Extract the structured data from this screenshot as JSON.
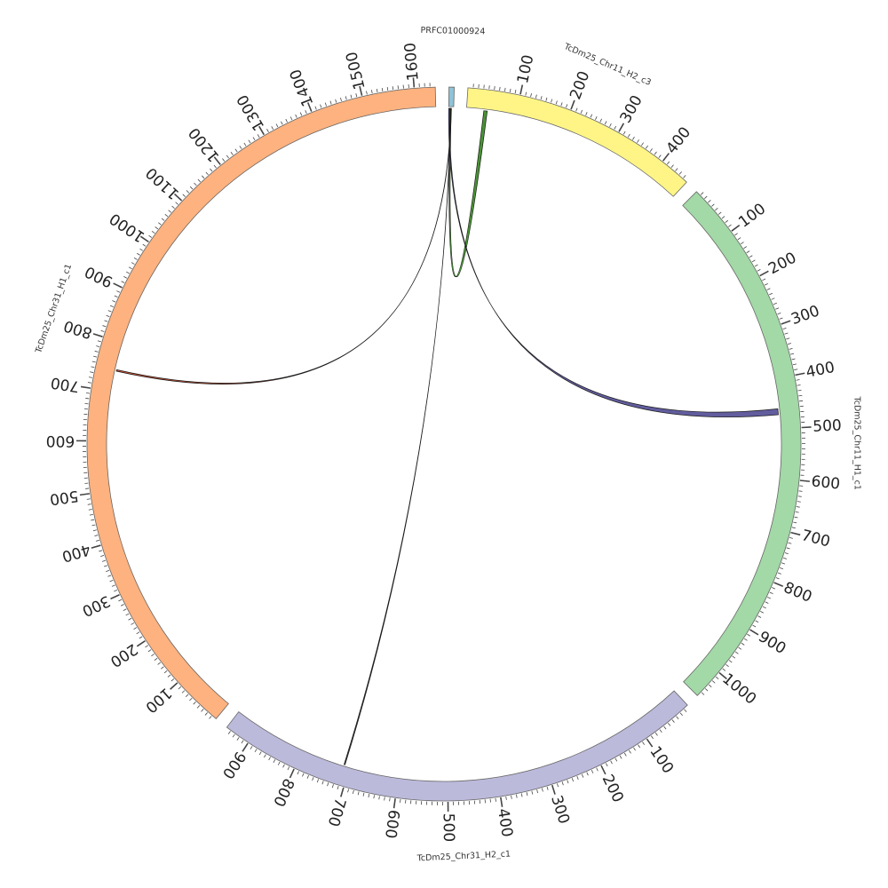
{
  "chart_data": {
    "type": "circos",
    "segments": [
      {
        "name": "PRFC01000924",
        "length": 10,
        "color": "#8fc3d8",
        "tick_labels": []
      },
      {
        "name": "TcDm25_Chr11_H2_c3",
        "length": 460,
        "color": "#fff587",
        "tick_labels": [
          "100",
          "200",
          "300",
          "400"
        ]
      },
      {
        "name": "TcDm25_Chr11_H1_c1",
        "length": 1060,
        "color": "#a3d8a7",
        "tick_labels": [
          "100",
          "200",
          "300",
          "400",
          "500",
          "600",
          "700",
          "800",
          "900",
          "1000"
        ]
      },
      {
        "name": "TcDm25_Chr31_H2_c1",
        "length": 950,
        "color": "#bcbadb",
        "tick_labels": [
          "100",
          "200",
          "300",
          "400",
          "500",
          "600",
          "700",
          "800",
          "900"
        ]
      },
      {
        "name": "TcDm25_Chr31_H1_c1",
        "length": 1640,
        "color": "#fdb27f",
        "tick_labels": [
          "100",
          "200",
          "300",
          "400",
          "500",
          "600",
          "700",
          "800",
          "900",
          "1000",
          "1100",
          "1200",
          "1300",
          "1400",
          "1500",
          "1600"
        ]
      }
    ],
    "links": [
      {
        "from_segment": "PRFC01000924",
        "from_start": 2,
        "from_end": 5,
        "to_segment": "TcDm25_Chr11_H2_c3",
        "to_start": 35,
        "to_end": 42,
        "color": "#3f8c2a"
      },
      {
        "from_segment": "PRFC01000924",
        "from_start": 0,
        "from_end": 2,
        "to_segment": "TcDm25_Chr11_H1_c1",
        "to_start": 460,
        "to_end": 472,
        "color": "#5a5499"
      },
      {
        "from_segment": "PRFC01000924",
        "from_start": 5,
        "from_end": 5.5,
        "to_segment": "TcDm25_Chr31_H1_c1",
        "to_start": 742,
        "to_end": 745,
        "color": "#d04a2a"
      },
      {
        "from_segment": "PRFC01000924",
        "from_start": 4,
        "from_end": 4.4,
        "to_segment": "TcDm25_Chr31_H2_c1",
        "to_start": 710,
        "to_end": 712,
        "color": "#333333"
      }
    ]
  }
}
